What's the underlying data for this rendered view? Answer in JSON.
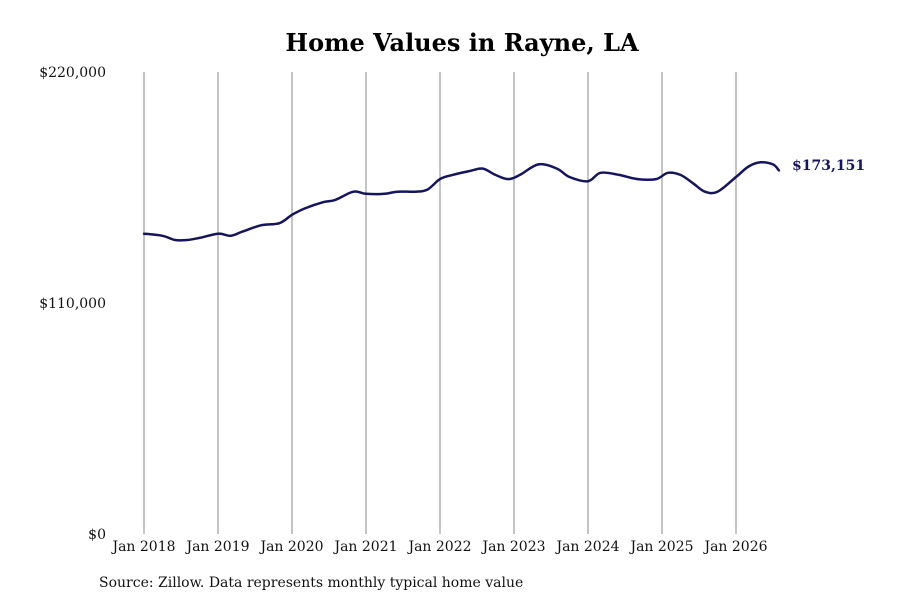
{
  "chart_data": {
    "type": "line",
    "title": "Home Values in Rayne, LA",
    "xlabel": "",
    "ylabel": "",
    "ylim": [
      0,
      220000
    ],
    "y_ticks": [
      {
        "value": 0,
        "label": "$0"
      },
      {
        "value": 110000,
        "label": "$110,000"
      },
      {
        "value": 220000,
        "label": "$220,000"
      }
    ],
    "x_ticks": [
      {
        "value": 2018,
        "label": "Jan 2018"
      },
      {
        "value": 2019,
        "label": "Jan 2019"
      },
      {
        "value": 2020,
        "label": "Jan 2020"
      },
      {
        "value": 2021,
        "label": "Jan 2021"
      },
      {
        "value": 2022,
        "label": "Jan 2022"
      },
      {
        "value": 2023,
        "label": "Jan 2023"
      },
      {
        "value": 2024,
        "label": "Jan 2024"
      },
      {
        "value": 2025,
        "label": "Jan 2025"
      },
      {
        "value": 2026,
        "label": "Jan 2026"
      }
    ],
    "grid": "vertical",
    "series": [
      {
        "color": "#16155c",
        "x": [
          2018.0,
          2018.25,
          2018.42,
          2018.58,
          2018.75,
          2019.0,
          2019.17,
          2019.33,
          2019.58,
          2019.83,
          2020.0,
          2020.17,
          2020.42,
          2020.58,
          2020.83,
          2021.0,
          2021.25,
          2021.42,
          2021.67,
          2021.83,
          2022.0,
          2022.17,
          2022.42,
          2022.58,
          2022.75,
          2022.92,
          2023.08,
          2023.33,
          2023.58,
          2023.75,
          2024.0,
          2024.17,
          2024.42,
          2024.67,
          2024.92,
          2025.08,
          2025.25,
          2025.42,
          2025.58,
          2025.75,
          2026.0,
          2026.17,
          2026.33,
          2026.5,
          2026.58
        ],
        "y": [
          143000,
          142000,
          140000,
          140000,
          141000,
          143000,
          142000,
          144000,
          147000,
          148000,
          152000,
          155000,
          158000,
          159000,
          163000,
          162000,
          162000,
          163000,
          163000,
          164000,
          169000,
          171000,
          173000,
          174000,
          171000,
          169000,
          171000,
          176000,
          174000,
          170000,
          168000,
          172000,
          171000,
          169000,
          169000,
          172000,
          171000,
          167000,
          163000,
          163000,
          170000,
          175000,
          177000,
          176000,
          173151
        ]
      }
    ],
    "end_label": "$173,151",
    "source": "Source: Zillow. Data represents monthly typical home value"
  }
}
